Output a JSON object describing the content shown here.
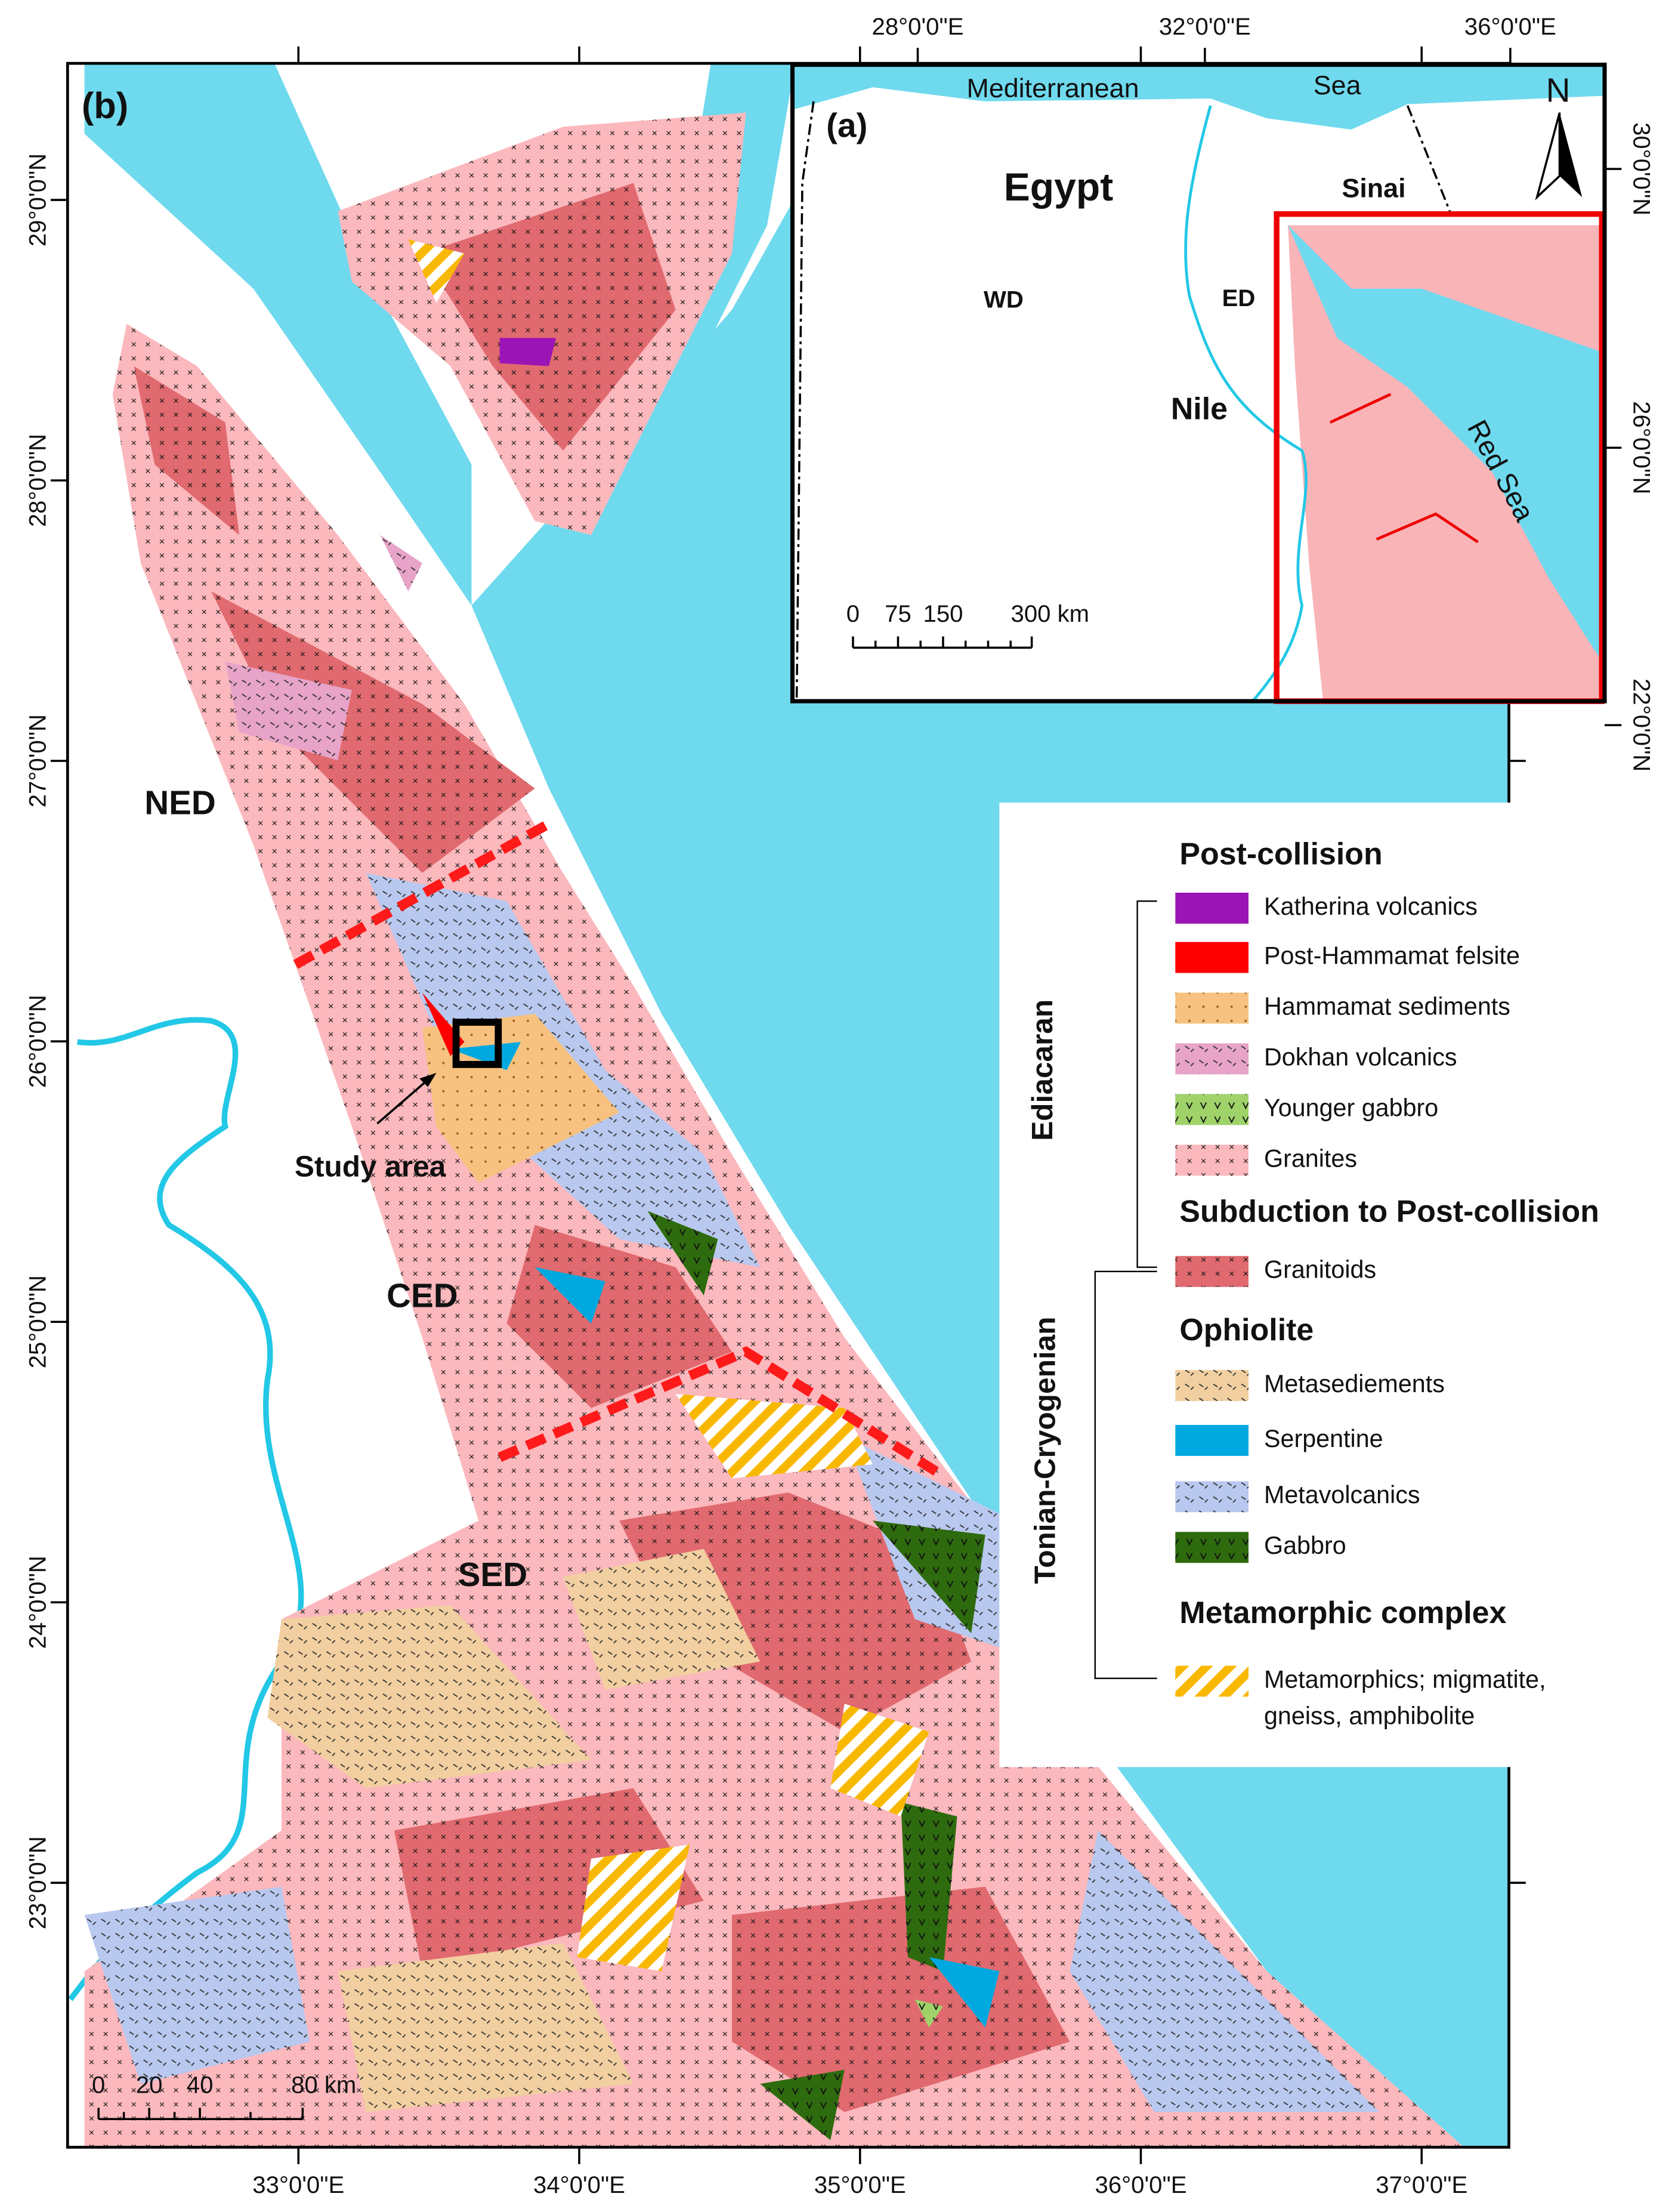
{
  "main_map": {
    "panel_label": "(b)",
    "x_ticks": [
      "33°0'0\"E",
      "34°0'0\"E",
      "35°0'0\"E",
      "36°0'0\"E",
      "37°0'0\"E"
    ],
    "y_ticks": [
      "29°0'0\"N",
      "28°0'0\"N",
      "27°0'0\"N",
      "26°0'0\"N",
      "25°0'0\"N",
      "24°0'0\"N",
      "23°0'0\"N"
    ],
    "regions": [
      "NED",
      "CED",
      "SED"
    ],
    "study_area": "Study area",
    "scale_bar": [
      "0",
      "20",
      "40",
      "80 km"
    ]
  },
  "inset_map": {
    "panel_label": "(a)",
    "x_ticks": [
      "28°0'0\"E",
      "32°0'0\"E",
      "36°0'0\"E"
    ],
    "y_ticks": [
      "30°0'0\"N",
      "26°0'0\"N",
      "22°0'0\"N"
    ],
    "labels": [
      "Mediterranean",
      "Sea",
      "Egypt",
      "Sinai",
      "WD",
      "ED",
      "Nile",
      "Red Sea"
    ],
    "north": "N",
    "scale_bar": [
      "0",
      "75",
      "150",
      "300 km"
    ]
  },
  "legend": {
    "eras": [
      "Ediacaran",
      "Tonian-Cryogenian"
    ],
    "groups": [
      {
        "title": "Post-collision",
        "items": [
          {
            "label": "Katherina volcanics",
            "color": "#9b14b5"
          },
          {
            "label": "Post-Hammamat felsite",
            "color": "#ff0000"
          },
          {
            "label": "Hammamat sediments",
            "color": "#f7c27f"
          },
          {
            "label": "Dokhan volcanics",
            "color": "#e7a3c8"
          },
          {
            "label": "Younger gabbro",
            "color": "#9fd36a"
          },
          {
            "label": "Granites",
            "color": "#fbb8bd"
          }
        ]
      },
      {
        "title": "Subduction to Post-collision",
        "items": [
          {
            "label": "Granitoids",
            "color": "#e06a6f"
          }
        ]
      },
      {
        "title": "Ophiolite",
        "items": [
          {
            "label": "Metasediements",
            "color": "#f2cfa0"
          },
          {
            "label": "Serpentine",
            "color": "#00a8e0"
          },
          {
            "label": "Metavolcanics",
            "color": "#b9c8ef"
          },
          {
            "label": "Gabbro",
            "color": "#2e6b0e"
          }
        ]
      },
      {
        "title": "Metamorphic complex",
        "items": [
          {
            "label": [
              "Metamorphics; migmatite,",
              "gneiss, amphibolite"
            ],
            "color": "#f9b800"
          }
        ]
      }
    ]
  }
}
